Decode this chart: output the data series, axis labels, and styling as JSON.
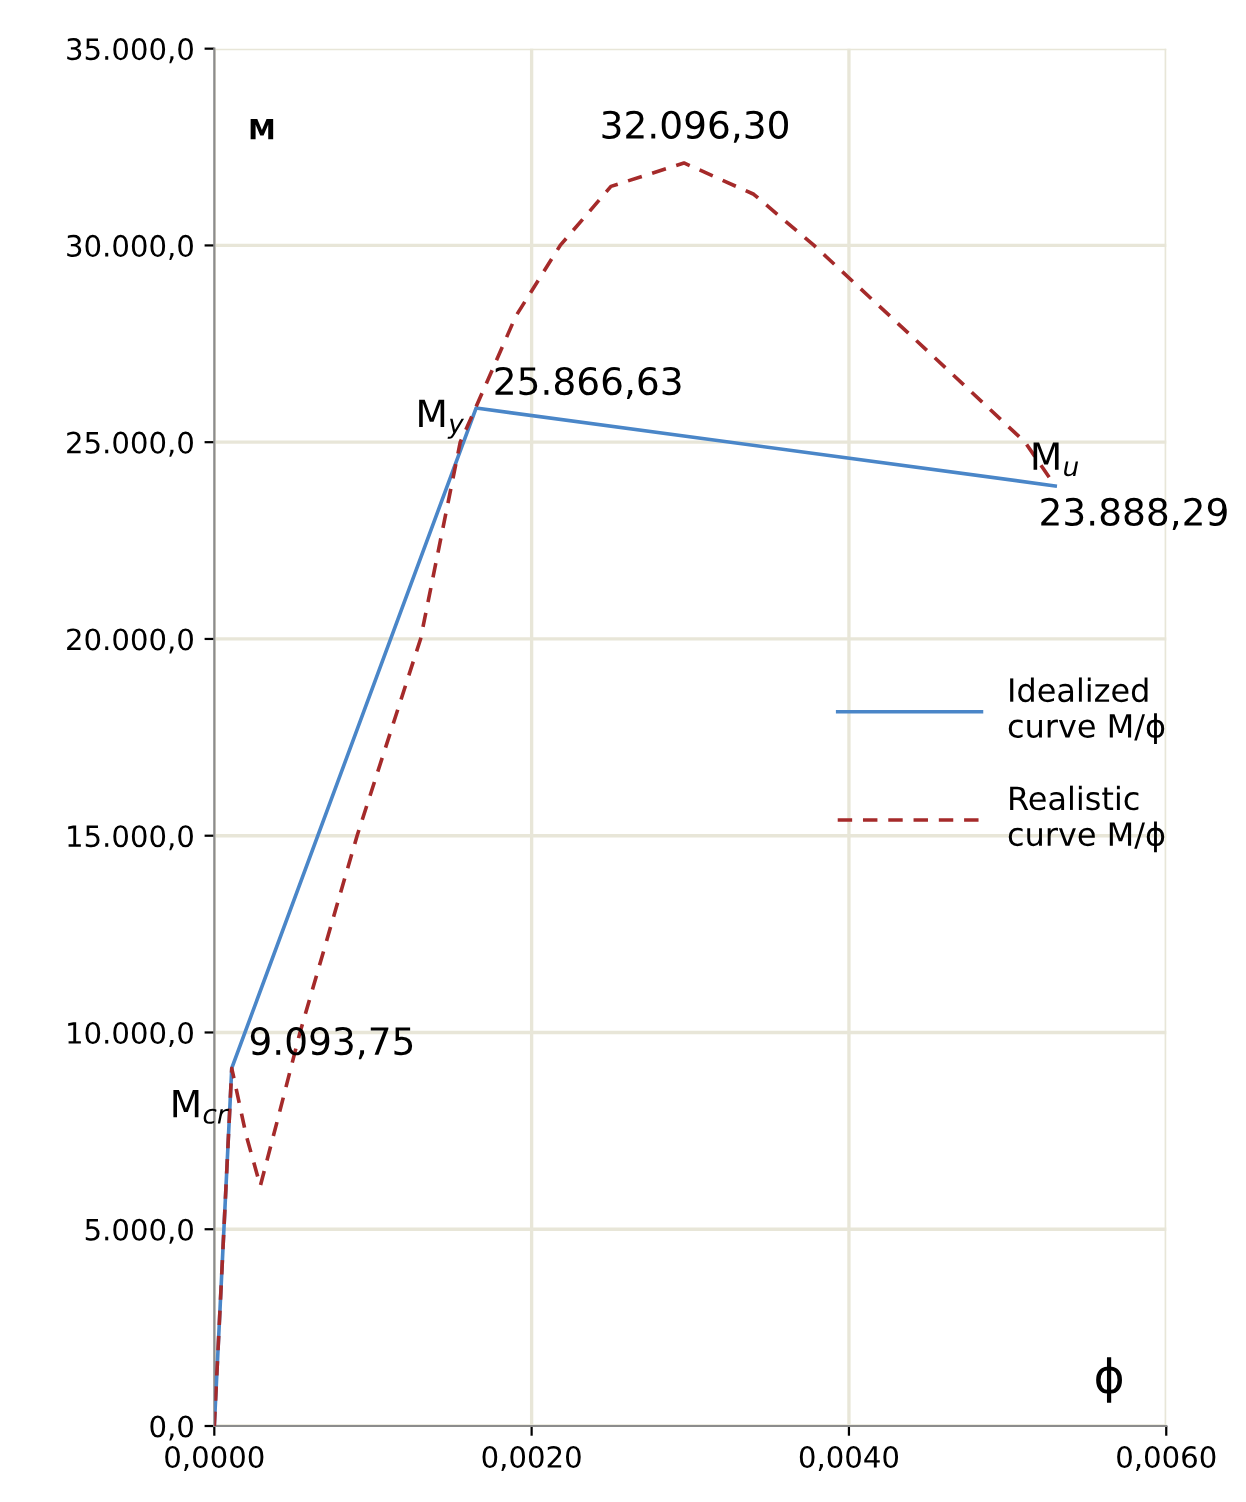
{
  "chart_data": {
    "type": "line",
    "xlabel": "ϕ",
    "ylabel": "M",
    "series": [
      {
        "name": "Idealized\ncurve M/ϕ",
        "color": "#4a86c8",
        "line_style": "solid",
        "x": [
          0,
          0.00011,
          0.00165,
          0.0053
        ],
        "values": [
          0,
          9093.75,
          25866.63,
          23888.29
        ]
      },
      {
        "name": "Realistic\ncurve M/ϕ",
        "color": "#a52a2a",
        "line_style": "dashed",
        "x": [
          0,
          0.00011,
          0.0002,
          0.00029,
          0.0004,
          0.00054,
          0.0009,
          0.0013,
          0.00155,
          0.00165,
          0.0019,
          0.00218,
          0.0025,
          0.00296,
          0.0034,
          0.00378,
          0.0045,
          0.00511,
          0.0053
        ],
        "values": [
          0,
          9090,
          7400,
          6100,
          7800,
          10000,
          15000,
          20000,
          25000,
          25900,
          28200,
          30000,
          31500,
          32096,
          31300,
          30000,
          27300,
          25000,
          23888
        ]
      }
    ],
    "annotations": [
      {
        "text": "M$_{cr}$",
        "x": 0.00011,
        "y": 9093.75
      },
      {
        "text": "9.093,75",
        "x": 0.00011,
        "y": 9093.75
      },
      {
        "text": "M$_{y}$",
        "x": 0.00165,
        "y": 25866.63
      },
      {
        "text": "25.866,63",
        "x": 0.00165,
        "y": 25866.63
      },
      {
        "text": "32.096,30",
        "x": 0.00296,
        "y": 32096.3
      },
      {
        "text": "M$_{u}$",
        "x": 0.0053,
        "y": 23888.29
      },
      {
        "text": "23.888,29",
        "x": 0.0053,
        "y": 23888.29
      }
    ],
    "xlim": [
      0,
      0.006
    ],
    "ylim": [
      0,
      35000
    ],
    "xticks": [
      {
        "value": 0,
        "label": "0,0000"
      },
      {
        "value": 0.002,
        "label": "0,0020"
      },
      {
        "value": 0.004,
        "label": "0,0040"
      },
      {
        "value": 0.006,
        "label": "0,0060"
      }
    ],
    "yticks": [
      {
        "value": 0,
        "label": "0,0"
      },
      {
        "value": 5000,
        "label": "5.000,0"
      },
      {
        "value": 10000,
        "label": "10.000,0"
      },
      {
        "value": 15000,
        "label": "15.000,0"
      },
      {
        "value": 20000,
        "label": "20.000,0"
      },
      {
        "value": 25000,
        "label": "25.000,0"
      },
      {
        "value": 30000,
        "label": "30.000,0"
      },
      {
        "value": 35000,
        "label": "35.000,0"
      }
    ],
    "grid": true,
    "legend": "center right",
    "marker": "none"
  }
}
